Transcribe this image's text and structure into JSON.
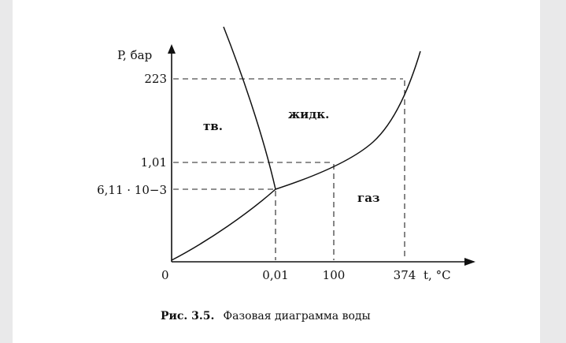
{
  "axes": {
    "y_label": "P, бар",
    "x_label": "t, °C",
    "origin": "0",
    "y_ticks": [
      "223",
      "1,01",
      "6,11 · 10−3"
    ],
    "x_ticks": [
      "0,01",
      "100",
      "374"
    ]
  },
  "regions": {
    "solid": "тв.",
    "liquid": "жидк.",
    "gas": "газ"
  },
  "caption": {
    "prefix": "Рис. 3.5.",
    "text": "Фазовая диаграмма воды"
  },
  "colors": {
    "page_background": "#ffffff",
    "outer_background": "#e9e9ea",
    "ink": "#111111"
  }
}
